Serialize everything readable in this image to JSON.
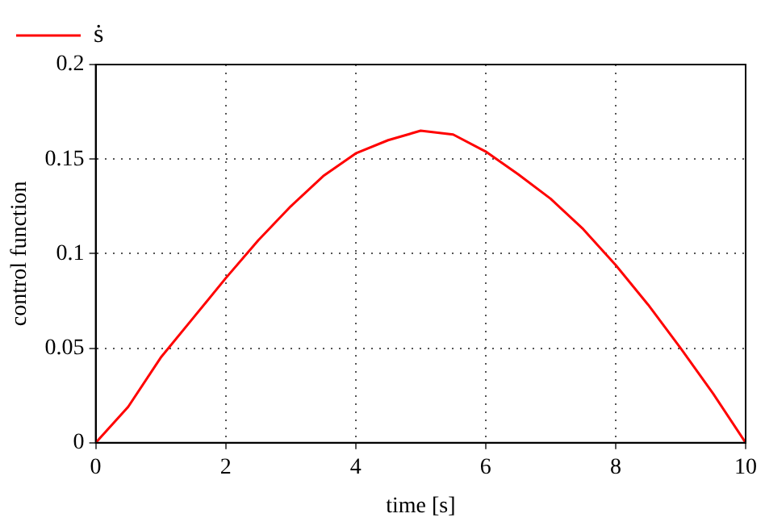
{
  "chart_data": {
    "type": "line",
    "xlabel": "time [s]",
    "ylabel": "control function",
    "x": [
      0,
      0.5,
      1,
      1.5,
      2,
      2.5,
      3,
      3.5,
      4,
      4.5,
      5,
      5.5,
      6,
      6.5,
      7,
      7.5,
      8,
      8.5,
      9,
      9.5,
      10
    ],
    "series": [
      {
        "name": "ṡ",
        "color": "#ff0000",
        "values": [
          0,
          0.019,
          0.045,
          0.066,
          0.087,
          0.107,
          0.125,
          0.141,
          0.153,
          0.16,
          0.165,
          0.163,
          0.154,
          0.142,
          0.129,
          0.113,
          0.094,
          0.073,
          0.05,
          0.026,
          0
        ]
      }
    ],
    "xlim": [
      0,
      10
    ],
    "xticks": [
      0,
      2,
      4,
      6,
      8,
      10
    ],
    "ylim": [
      0,
      0.2
    ],
    "yticks": [
      0,
      0.05,
      0.1,
      0.15,
      0.2
    ],
    "grid": true,
    "legend": "top left",
    "marker": "none",
    "line_style": "solid"
  }
}
